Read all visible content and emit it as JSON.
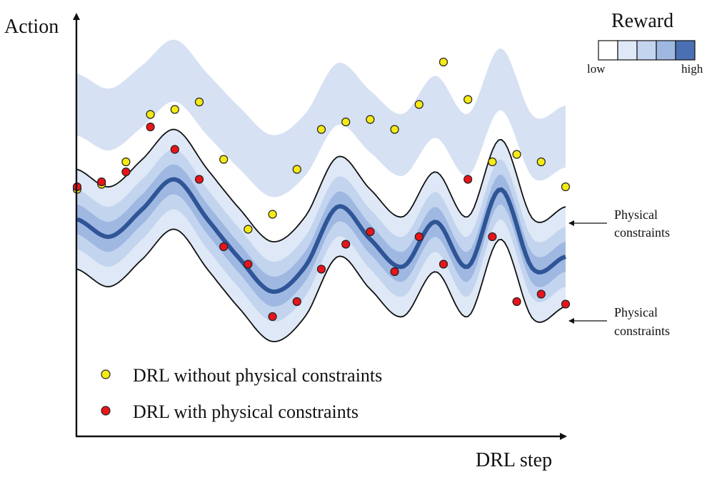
{
  "title": "",
  "axes": {
    "y_label": "Action",
    "x_label": "DRL step"
  },
  "reward_legend": {
    "title": "Reward",
    "low_label": "low",
    "high_label": "high",
    "colors": [
      "#ffffff",
      "#dfe8f6",
      "#c3d4ef",
      "#9fb8e2",
      "#4a6fb3"
    ]
  },
  "annotations": {
    "upper": [
      "Physical",
      "constraints"
    ],
    "lower": [
      "Physical",
      "constraints"
    ]
  },
  "legend": {
    "without": "DRL without physical constraints",
    "with": "DRL with physical constraints"
  },
  "colors": {
    "band_outer": "#dfe8f6",
    "band_mid": "#c3d4ef",
    "band_inner": "#9fb8e2",
    "center_line": "#2f5597",
    "constraint_line": "#111111",
    "unconstrained_band": "#d6e1f3",
    "yellow_point": "#f5ea14",
    "red_point": "#e8141a"
  },
  "chart_data": {
    "type": "scatter",
    "description_x": "DRL step index (0-20)",
    "description_y": "action value (0 = center of constraint band; +1 = upper physical constraint, -1 = lower physical constraint)",
    "constraint_center": [
      0.35,
      -0.0,
      0.55,
      1.15,
      0.35,
      -0.45,
      -1.1,
      -0.6,
      0.6,
      -0.05,
      -0.6,
      0.3,
      -0.6,
      0.95,
      -0.65,
      -0.4
    ],
    "series": [
      {
        "name": "DRL without physical constraints",
        "color": "#f5ea14",
        "x": [
          0,
          1,
          2,
          3,
          4,
          5,
          6,
          7,
          8,
          9,
          10,
          11,
          12,
          13,
          14,
          15,
          16,
          17,
          18,
          19,
          20
        ],
        "y": [
          0.95,
          1.05,
          1.5,
          2.45,
          2.55,
          2.7,
          1.55,
          0.15,
          0.45,
          1.35,
          2.15,
          2.3,
          2.35,
          2.15,
          2.65,
          3.5,
          2.75,
          1.5,
          1.65,
          1.5,
          1.0
        ]
      },
      {
        "name": "DRL with physical constraints",
        "color": "#e8141a",
        "x": [
          0,
          1,
          2,
          3,
          4,
          5,
          6,
          7,
          8,
          9,
          10,
          11,
          12,
          13,
          14,
          15,
          16,
          17,
          18,
          19,
          20
        ],
        "y": [
          1.0,
          1.1,
          1.3,
          2.2,
          1.75,
          1.15,
          -0.2,
          -0.55,
          -1.6,
          -1.3,
          -0.65,
          -0.15,
          0.1,
          -0.7,
          0.0,
          -0.55,
          1.15,
          0.0,
          -1.3,
          -1.15,
          -1.35
        ]
      }
    ]
  }
}
